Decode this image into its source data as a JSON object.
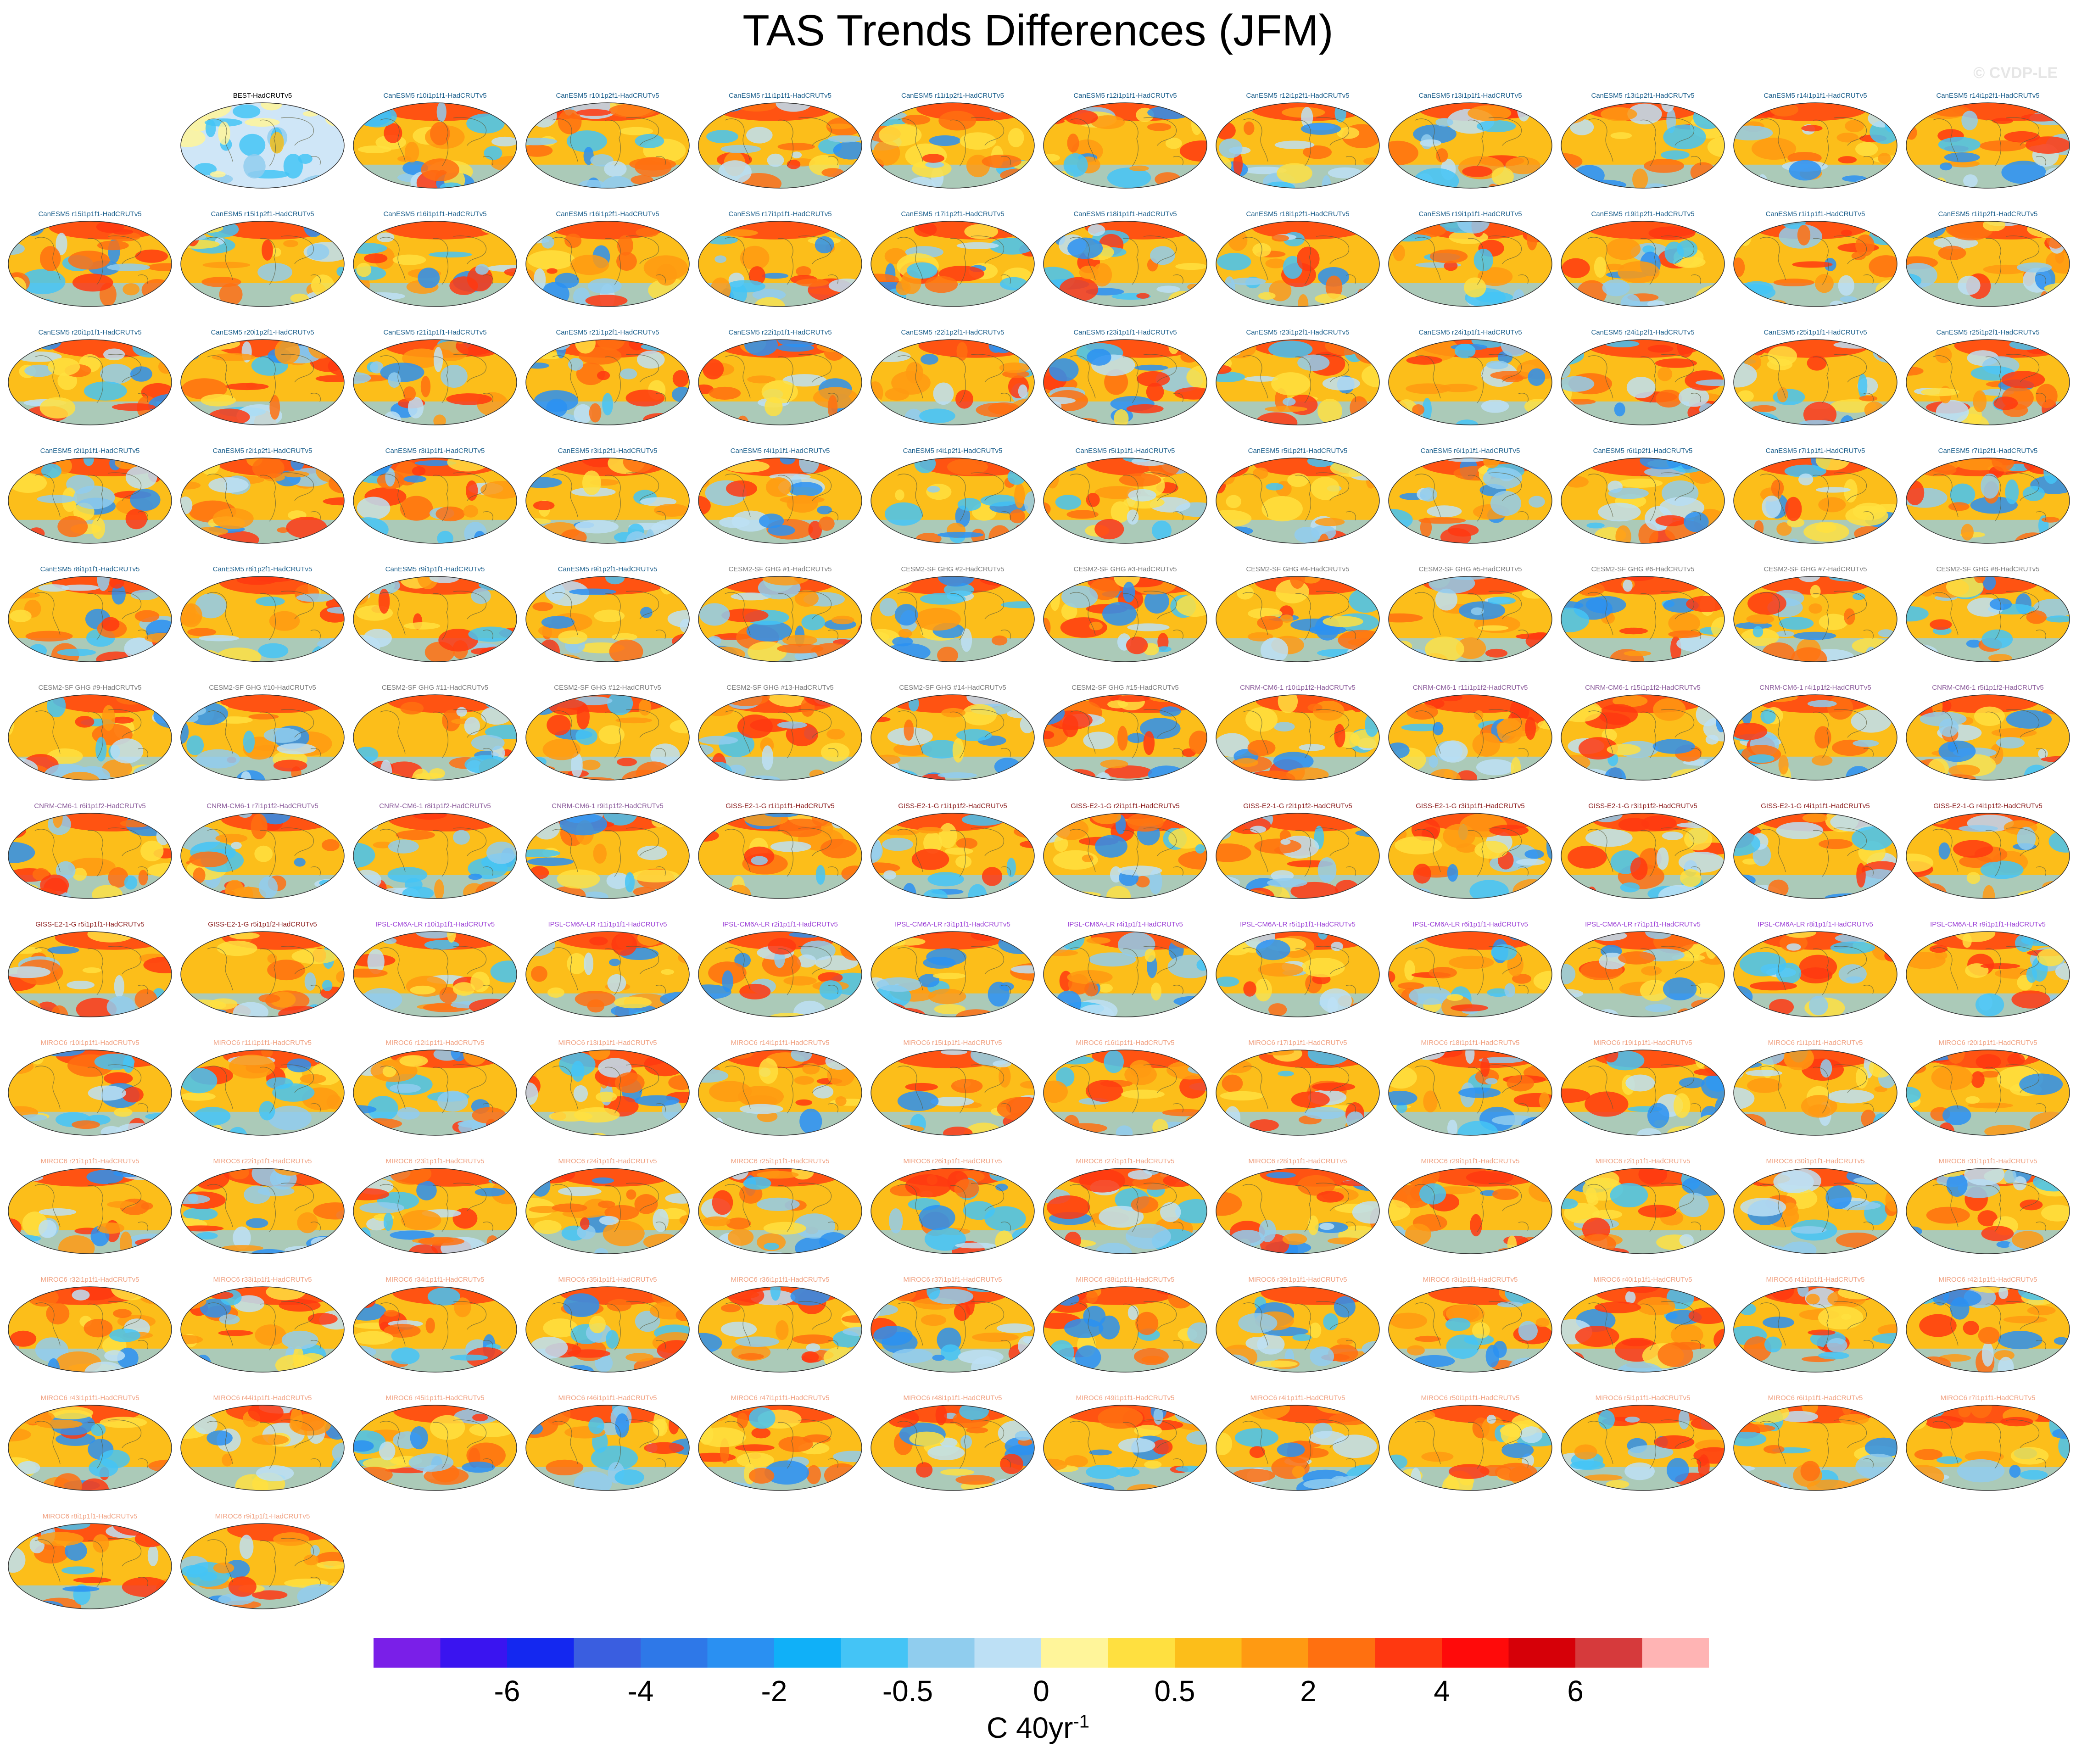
{
  "title": "TAS Trends Differences (JFM)",
  "watermark": "© CVDP-LE",
  "colorbar": {
    "colors": [
      "#7a1fe8",
      "#3a14f0",
      "#1428f0",
      "#3a5ee0",
      "#2e78e8",
      "#2a90f2",
      "#10b0f8",
      "#44c4f6",
      "#90cdee",
      "#bde0f5",
      "#fff59a",
      "#ffe040",
      "#fcbe1a",
      "#ff9a12",
      "#ff7010",
      "#ff3810",
      "#ff0a0a",
      "#d60008",
      "#d63a3c",
      "#ffb4b4"
    ],
    "tick_labels": [
      "-6",
      "-4",
      "-2",
      "-0.5",
      "0",
      "0.5",
      "2",
      "4",
      "6"
    ],
    "units_main": "C 40yr",
    "units_exp": "-1"
  },
  "panels": [
    {
      "label": "BEST-HadCRUTv5",
      "color": "#000000",
      "type": "obs"
    },
    {
      "label": "CanESM5 r10i1p1f1-HadCRUTv5",
      "color": "#1b5f8c",
      "type": "model"
    },
    {
      "label": "CanESM5 r10i1p2f1-HadCRUTv5",
      "color": "#1b5f8c",
      "type": "model"
    },
    {
      "label": "CanESM5 r11i1p1f1-HadCRUTv5",
      "color": "#1b5f8c",
      "type": "model"
    },
    {
      "label": "CanESM5 r11i1p2f1-HadCRUTv5",
      "color": "#1b5f8c",
      "type": "model"
    },
    {
      "label": "CanESM5 r12i1p1f1-HadCRUTv5",
      "color": "#1b5f8c",
      "type": "model"
    },
    {
      "label": "CanESM5 r12i1p2f1-HadCRUTv5",
      "color": "#1b5f8c",
      "type": "model"
    },
    {
      "label": "CanESM5 r13i1p1f1-HadCRUTv5",
      "color": "#1b5f8c",
      "type": "model"
    },
    {
      "label": "CanESM5 r13i1p2f1-HadCRUTv5",
      "color": "#1b5f8c",
      "type": "model"
    },
    {
      "label": "CanESM5 r14i1p1f1-HadCRUTv5",
      "color": "#1b5f8c",
      "type": "model"
    },
    {
      "label": "CanESM5 r14i1p2f1-HadCRUTv5",
      "color": "#1b5f8c",
      "type": "model"
    },
    {
      "label": "CanESM5 r15i1p1f1-HadCRUTv5",
      "color": "#1b5f8c",
      "type": "model"
    },
    {
      "label": "CanESM5 r15i1p2f1-HadCRUTv5",
      "color": "#1b5f8c",
      "type": "model"
    },
    {
      "label": "CanESM5 r16i1p1f1-HadCRUTv5",
      "color": "#1b5f8c",
      "type": "model"
    },
    {
      "label": "CanESM5 r16i1p2f1-HadCRUTv5",
      "color": "#1b5f8c",
      "type": "model"
    },
    {
      "label": "CanESM5 r17i1p1f1-HadCRUTv5",
      "color": "#1b5f8c",
      "type": "model"
    },
    {
      "label": "CanESM5 r17i1p2f1-HadCRUTv5",
      "color": "#1b5f8c",
      "type": "model"
    },
    {
      "label": "CanESM5 r18i1p1f1-HadCRUTv5",
      "color": "#1b5f8c",
      "type": "model"
    },
    {
      "label": "CanESM5 r18i1p2f1-HadCRUTv5",
      "color": "#1b5f8c",
      "type": "model"
    },
    {
      "label": "CanESM5 r19i1p1f1-HadCRUTv5",
      "color": "#1b5f8c",
      "type": "model"
    },
    {
      "label": "CanESM5 r19i1p2f1-HadCRUTv5",
      "color": "#1b5f8c",
      "type": "model"
    },
    {
      "label": "CanESM5 r1i1p1f1-HadCRUTv5",
      "color": "#1b5f8c",
      "type": "model"
    },
    {
      "label": "CanESM5 r1i1p2f1-HadCRUTv5",
      "color": "#1b5f8c",
      "type": "model"
    },
    {
      "label": "CanESM5 r20i1p1f1-HadCRUTv5",
      "color": "#1b5f8c",
      "type": "model"
    },
    {
      "label": "CanESM5 r20i1p2f1-HadCRUTv5",
      "color": "#1b5f8c",
      "type": "model"
    },
    {
      "label": "CanESM5 r21i1p1f1-HadCRUTv5",
      "color": "#1b5f8c",
      "type": "model"
    },
    {
      "label": "CanESM5 r21i1p2f1-HadCRUTv5",
      "color": "#1b5f8c",
      "type": "model"
    },
    {
      "label": "CanESM5 r22i1p1f1-HadCRUTv5",
      "color": "#1b5f8c",
      "type": "model"
    },
    {
      "label": "CanESM5 r22i1p2f1-HadCRUTv5",
      "color": "#1b5f8c",
      "type": "model"
    },
    {
      "label": "CanESM5 r23i1p1f1-HadCRUTv5",
      "color": "#1b5f8c",
      "type": "model"
    },
    {
      "label": "CanESM5 r23i1p2f1-HadCRUTv5",
      "color": "#1b5f8c",
      "type": "model"
    },
    {
      "label": "CanESM5 r24i1p1f1-HadCRUTv5",
      "color": "#1b5f8c",
      "type": "model"
    },
    {
      "label": "CanESM5 r24i1p2f1-HadCRUTv5",
      "color": "#1b5f8c",
      "type": "model"
    },
    {
      "label": "CanESM5 r25i1p1f1-HadCRUTv5",
      "color": "#1b5f8c",
      "type": "model"
    },
    {
      "label": "CanESM5 r25i1p2f1-HadCRUTv5",
      "color": "#1b5f8c",
      "type": "model"
    },
    {
      "label": "CanESM5 r2i1p1f1-HadCRUTv5",
      "color": "#1b5f8c",
      "type": "model"
    },
    {
      "label": "CanESM5 r2i1p2f1-HadCRUTv5",
      "color": "#1b5f8c",
      "type": "model"
    },
    {
      "label": "CanESM5 r3i1p1f1-HadCRUTv5",
      "color": "#1b5f8c",
      "type": "model"
    },
    {
      "label": "CanESM5 r3i1p2f1-HadCRUTv5",
      "color": "#1b5f8c",
      "type": "model"
    },
    {
      "label": "CanESM5 r4i1p1f1-HadCRUTv5",
      "color": "#1b5f8c",
      "type": "model"
    },
    {
      "label": "CanESM5 r4i1p2f1-HadCRUTv5",
      "color": "#1b5f8c",
      "type": "model"
    },
    {
      "label": "CanESM5 r5i1p1f1-HadCRUTv5",
      "color": "#1b5f8c",
      "type": "model"
    },
    {
      "label": "CanESM5 r5i1p2f1-HadCRUTv5",
      "color": "#1b5f8c",
      "type": "model"
    },
    {
      "label": "CanESM5 r6i1p1f1-HadCRUTv5",
      "color": "#1b5f8c",
      "type": "model"
    },
    {
      "label": "CanESM5 r6i1p2f1-HadCRUTv5",
      "color": "#1b5f8c",
      "type": "model"
    },
    {
      "label": "CanESM5 r7i1p1f1-HadCRUTv5",
      "color": "#1b5f8c",
      "type": "model"
    },
    {
      "label": "CanESM5 r7i1p2f1-HadCRUTv5",
      "color": "#1b5f8c",
      "type": "model"
    },
    {
      "label": "CanESM5 r8i1p1f1-HadCRUTv5",
      "color": "#1b5f8c",
      "type": "model"
    },
    {
      "label": "CanESM5 r8i1p2f1-HadCRUTv5",
      "color": "#1b5f8c",
      "type": "model"
    },
    {
      "label": "CanESM5 r9i1p1f1-HadCRUTv5",
      "color": "#1b5f8c",
      "type": "model"
    },
    {
      "label": "CanESM5 r9i1p2f1-HadCRUTv5",
      "color": "#1b5f8c",
      "type": "model"
    },
    {
      "label": "CESM2-SF GHG #1-HadCRUTv5",
      "color": "#7a7a7a",
      "type": "model"
    },
    {
      "label": "CESM2-SF GHG #2-HadCRUTv5",
      "color": "#7a7a7a",
      "type": "model"
    },
    {
      "label": "CESM2-SF GHG #3-HadCRUTv5",
      "color": "#7a7a7a",
      "type": "model"
    },
    {
      "label": "CESM2-SF GHG #4-HadCRUTv5",
      "color": "#7a7a7a",
      "type": "model"
    },
    {
      "label": "CESM2-SF GHG #5-HadCRUTv5",
      "color": "#7a7a7a",
      "type": "model"
    },
    {
      "label": "CESM2-SF GHG #6-HadCRUTv5",
      "color": "#7a7a7a",
      "type": "model"
    },
    {
      "label": "CESM2-SF GHG #7-HadCRUTv5",
      "color": "#7a7a7a",
      "type": "model"
    },
    {
      "label": "CESM2-SF GHG #8-HadCRUTv5",
      "color": "#7a7a7a",
      "type": "model"
    },
    {
      "label": "CESM2-SF GHG #9-HadCRUTv5",
      "color": "#7a7a7a",
      "type": "model"
    },
    {
      "label": "CESM2-SF GHG #10-HadCRUTv5",
      "color": "#7a7a7a",
      "type": "model"
    },
    {
      "label": "CESM2-SF GHG #11-HadCRUTv5",
      "color": "#7a7a7a",
      "type": "model"
    },
    {
      "label": "CESM2-SF GHG #12-HadCRUTv5",
      "color": "#7a7a7a",
      "type": "model"
    },
    {
      "label": "CESM2-SF GHG #13-HadCRUTv5",
      "color": "#7a7a7a",
      "type": "model"
    },
    {
      "label": "CESM2-SF GHG #14-HadCRUTv5",
      "color": "#7a7a7a",
      "type": "model"
    },
    {
      "label": "CESM2-SF GHG #15-HadCRUTv5",
      "color": "#7a7a7a",
      "type": "model"
    },
    {
      "label": "CNRM-CM6-1 r10i1p1f2-HadCRUTv5",
      "color": "#8a5a9a",
      "type": "model"
    },
    {
      "label": "CNRM-CM6-1 r11i1p1f2-HadCRUTv5",
      "color": "#8a5a9a",
      "type": "model"
    },
    {
      "label": "CNRM-CM6-1 r15i1p1f2-HadCRUTv5",
      "color": "#8a5a9a",
      "type": "model"
    },
    {
      "label": "CNRM-CM6-1 r4i1p1f2-HadCRUTv5",
      "color": "#8a5a9a",
      "type": "model"
    },
    {
      "label": "CNRM-CM6-1 r5i1p1f2-HadCRUTv5",
      "color": "#8a5a9a",
      "type": "model"
    },
    {
      "label": "CNRM-CM6-1 r6i1p1f2-HadCRUTv5",
      "color": "#8a5a9a",
      "type": "model"
    },
    {
      "label": "CNRM-CM6-1 r7i1p1f2-HadCRUTv5",
      "color": "#8a5a9a",
      "type": "model"
    },
    {
      "label": "CNRM-CM6-1 r8i1p1f2-HadCRUTv5",
      "color": "#8a5a9a",
      "type": "model"
    },
    {
      "label": "CNRM-CM6-1 r9i1p1f2-HadCRUTv5",
      "color": "#8a5a9a",
      "type": "model"
    },
    {
      "label": "GISS-E2-1-G r1i1p1f1-HadCRUTv5",
      "color": "#8a1a1a",
      "type": "model"
    },
    {
      "label": "GISS-E2-1-G r1i1p1f2-HadCRUTv5",
      "color": "#8a1a1a",
      "type": "model"
    },
    {
      "label": "GISS-E2-1-G r2i1p1f1-HadCRUTv5",
      "color": "#8a1a1a",
      "type": "model"
    },
    {
      "label": "GISS-E2-1-G r2i1p1f2-HadCRUTv5",
      "color": "#8a1a1a",
      "type": "model"
    },
    {
      "label": "GISS-E2-1-G r3i1p1f1-HadCRUTv5",
      "color": "#8a1a1a",
      "type": "model"
    },
    {
      "label": "GISS-E2-1-G r3i1p1f2-HadCRUTv5",
      "color": "#8a1a1a",
      "type": "model"
    },
    {
      "label": "GISS-E2-1-G r4i1p1f1-HadCRUTv5",
      "color": "#8a1a1a",
      "type": "model"
    },
    {
      "label": "GISS-E2-1-G r4i1p1f2-HadCRUTv5",
      "color": "#8a1a1a",
      "type": "model"
    },
    {
      "label": "GISS-E2-1-G r5i1p1f1-HadCRUTv5",
      "color": "#8a1a1a",
      "type": "model"
    },
    {
      "label": "GISS-E2-1-G r5i1p1f2-HadCRUTv5",
      "color": "#8a1a1a",
      "type": "model"
    },
    {
      "label": "IPSL-CM6A-LR r10i1p1f1-HadCRUTv5",
      "color": "#9b3fd6",
      "type": "model"
    },
    {
      "label": "IPSL-CM6A-LR r11i1p1f1-HadCRUTv5",
      "color": "#9b3fd6",
      "type": "model"
    },
    {
      "label": "IPSL-CM6A-LR r2i1p1f1-HadCRUTv5",
      "color": "#9b3fd6",
      "type": "model"
    },
    {
      "label": "IPSL-CM6A-LR r3i1p1f1-HadCRUTv5",
      "color": "#9b3fd6",
      "type": "model"
    },
    {
      "label": "IPSL-CM6A-LR r4i1p1f1-HadCRUTv5",
      "color": "#9b3fd6",
      "type": "model"
    },
    {
      "label": "IPSL-CM6A-LR r5i1p1f1-HadCRUTv5",
      "color": "#9b3fd6",
      "type": "model"
    },
    {
      "label": "IPSL-CM6A-LR r6i1p1f1-HadCRUTv5",
      "color": "#9b3fd6",
      "type": "model"
    },
    {
      "label": "IPSL-CM6A-LR r7i1p1f1-HadCRUTv5",
      "color": "#9b3fd6",
      "type": "model"
    },
    {
      "label": "IPSL-CM6A-LR r8i1p1f1-HadCRUTv5",
      "color": "#9b3fd6",
      "type": "model"
    },
    {
      "label": "IPSL-CM6A-LR r9i1p1f1-HadCRUTv5",
      "color": "#9b3fd6",
      "type": "model"
    },
    {
      "label": "MIROC6 r10i1p1f1-HadCRUTv5",
      "color": "#f0a080",
      "type": "model"
    },
    {
      "label": "MIROC6 r11i1p1f1-HadCRUTv5",
      "color": "#f0a080",
      "type": "model"
    },
    {
      "label": "MIROC6 r12i1p1f1-HadCRUTv5",
      "color": "#f0a080",
      "type": "model"
    },
    {
      "label": "MIROC6 r13i1p1f1-HadCRUTv5",
      "color": "#f0a080",
      "type": "model"
    },
    {
      "label": "MIROC6 r14i1p1f1-HadCRUTv5",
      "color": "#f0a080",
      "type": "model"
    },
    {
      "label": "MIROC6 r15i1p1f1-HadCRUTv5",
      "color": "#f0a080",
      "type": "model"
    },
    {
      "label": "MIROC6 r16i1p1f1-HadCRUTv5",
      "color": "#f0a080",
      "type": "model"
    },
    {
      "label": "MIROC6 r17i1p1f1-HadCRUTv5",
      "color": "#f0a080",
      "type": "model"
    },
    {
      "label": "MIROC6 r18i1p1f1-HadCRUTv5",
      "color": "#f0a080",
      "type": "model"
    },
    {
      "label": "MIROC6 r19i1p1f1-HadCRUTv5",
      "color": "#f0a080",
      "type": "model"
    },
    {
      "label": "MIROC6 r1i1p1f1-HadCRUTv5",
      "color": "#f0a080",
      "type": "model"
    },
    {
      "label": "MIROC6 r20i1p1f1-HadCRUTv5",
      "color": "#f0a080",
      "type": "model"
    },
    {
      "label": "MIROC6 r21i1p1f1-HadCRUTv5",
      "color": "#f0a080",
      "type": "model"
    },
    {
      "label": "MIROC6 r22i1p1f1-HadCRUTv5",
      "color": "#f0a080",
      "type": "model"
    },
    {
      "label": "MIROC6 r23i1p1f1-HadCRUTv5",
      "color": "#f0a080",
      "type": "model"
    },
    {
      "label": "MIROC6 r24i1p1f1-HadCRUTv5",
      "color": "#f0a080",
      "type": "model"
    },
    {
      "label": "MIROC6 r25i1p1f1-HadCRUTv5",
      "color": "#f0a080",
      "type": "model"
    },
    {
      "label": "MIROC6 r26i1p1f1-HadCRUTv5",
      "color": "#f0a080",
      "type": "model"
    },
    {
      "label": "MIROC6 r27i1p1f1-HadCRUTv5",
      "color": "#f0a080",
      "type": "model"
    },
    {
      "label": "MIROC6 r28i1p1f1-HadCRUTv5",
      "color": "#f0a080",
      "type": "model"
    },
    {
      "label": "MIROC6 r29i1p1f1-HadCRUTv5",
      "color": "#f0a080",
      "type": "model"
    },
    {
      "label": "MIROC6 r2i1p1f1-HadCRUTv5",
      "color": "#f0a080",
      "type": "model"
    },
    {
      "label": "MIROC6 r30i1p1f1-HadCRUTv5",
      "color": "#f0a080",
      "type": "model"
    },
    {
      "label": "MIROC6 r31i1p1f1-HadCRUTv5",
      "color": "#f0a080",
      "type": "model"
    },
    {
      "label": "MIROC6 r32i1p1f1-HadCRUTv5",
      "color": "#f0a080",
      "type": "model"
    },
    {
      "label": "MIROC6 r33i1p1f1-HadCRUTv5",
      "color": "#f0a080",
      "type": "model"
    },
    {
      "label": "MIROC6 r34i1p1f1-HadCRUTv5",
      "color": "#f0a080",
      "type": "model"
    },
    {
      "label": "MIROC6 r35i1p1f1-HadCRUTv5",
      "color": "#f0a080",
      "type": "model"
    },
    {
      "label": "MIROC6 r36i1p1f1-HadCRUTv5",
      "color": "#f0a080",
      "type": "model"
    },
    {
      "label": "MIROC6 r37i1p1f1-HadCRUTv5",
      "color": "#f0a080",
      "type": "model"
    },
    {
      "label": "MIROC6 r38i1p1f1-HadCRUTv5",
      "color": "#f0a080",
      "type": "model"
    },
    {
      "label": "MIROC6 r39i1p1f1-HadCRUTv5",
      "color": "#f0a080",
      "type": "model"
    },
    {
      "label": "MIROC6 r3i1p1f1-HadCRUTv5",
      "color": "#f0a080",
      "type": "model"
    },
    {
      "label": "MIROC6 r40i1p1f1-HadCRUTv5",
      "color": "#f0a080",
      "type": "model"
    },
    {
      "label": "MIROC6 r41i1p1f1-HadCRUTv5",
      "color": "#f0a080",
      "type": "model"
    },
    {
      "label": "MIROC6 r42i1p1f1-HadCRUTv5",
      "color": "#f0a080",
      "type": "model"
    },
    {
      "label": "MIROC6 r43i1p1f1-HadCRUTv5",
      "color": "#f0a080",
      "type": "model"
    },
    {
      "label": "MIROC6 r44i1p1f1-HadCRUTv5",
      "color": "#f0a080",
      "type": "model"
    },
    {
      "label": "MIROC6 r45i1p1f1-HadCRUTv5",
      "color": "#f0a080",
      "type": "model"
    },
    {
      "label": "MIROC6 r46i1p1f1-HadCRUTv5",
      "color": "#f0a080",
      "type": "model"
    },
    {
      "label": "MIROC6 r47i1p1f1-HadCRUTv5",
      "color": "#f0a080",
      "type": "model"
    },
    {
      "label": "MIROC6 r48i1p1f1-HadCRUTv5",
      "color": "#f0a080",
      "type": "model"
    },
    {
      "label": "MIROC6 r49i1p1f1-HadCRUTv5",
      "color": "#f0a080",
      "type": "model"
    },
    {
      "label": "MIROC6 r4i1p1f1-HadCRUTv5",
      "color": "#f0a080",
      "type": "model"
    },
    {
      "label": "MIROC6 r50i1p1f1-HadCRUTv5",
      "color": "#f0a080",
      "type": "model"
    },
    {
      "label": "MIROC6 r5i1p1f1-HadCRUTv5",
      "color": "#f0a080",
      "type": "model"
    },
    {
      "label": "MIROC6 r6i1p1f1-HadCRUTv5",
      "color": "#f0a080",
      "type": "model"
    },
    {
      "label": "MIROC6 r7i1p1f1-HadCRUTv5",
      "color": "#f0a080",
      "type": "model"
    },
    {
      "label": "MIROC6 r8i1p1f1-HadCRUTv5",
      "color": "#f0a080",
      "type": "model"
    },
    {
      "label": "MIROC6 r9i1p1f1-HadCRUTv5",
      "color": "#f0a080",
      "type": "model"
    }
  ]
}
